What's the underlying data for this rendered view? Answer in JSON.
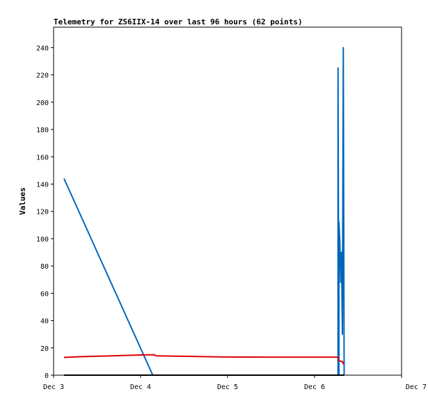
{
  "chart_data": {
    "type": "line",
    "title": "Telemetry for ZS6IIX-14 over last 96 hours (62 points)",
    "xlabel": "",
    "ylabel": "Values",
    "x_ticks": [
      "Dec 3",
      "Dec 4",
      "Dec 5",
      "Dec 6",
      "Dec 7"
    ],
    "xlim_days": [
      3,
      7
    ],
    "ylim": [
      0,
      255
    ],
    "y_ticks": [
      0,
      20,
      40,
      60,
      80,
      100,
      120,
      140,
      160,
      180,
      200,
      220,
      240
    ],
    "grid": false,
    "legend": "none",
    "series": [
      {
        "color": "#0066bb",
        "points": [
          [
            3.12,
            144
          ],
          [
            4.14,
            0
          ],
          [
            6.27,
            0
          ],
          [
            6.27,
            225
          ],
          [
            6.28,
            0
          ],
          [
            6.28,
            112
          ],
          [
            6.29,
            98
          ],
          [
            6.3,
            68
          ],
          [
            6.31,
            90
          ],
          [
            6.32,
            30
          ],
          [
            6.33,
            240
          ],
          [
            6.34,
            0
          ]
        ]
      },
      {
        "color": "#dd0000",
        "points": [
          [
            3.12,
            13
          ],
          [
            3.3,
            13.5
          ],
          [
            3.6,
            14
          ],
          [
            4.0,
            14.8
          ],
          [
            4.15,
            15
          ],
          [
            4.18,
            14.2
          ],
          [
            4.5,
            13.8
          ],
          [
            4.95,
            13.3
          ],
          [
            5.5,
            13.2
          ],
          [
            6.27,
            13.2
          ],
          [
            6.28,
            10.5
          ],
          [
            6.32,
            10
          ],
          [
            6.33,
            8
          ]
        ]
      },
      {
        "color": "#000000",
        "points": [
          [
            3.12,
            0
          ],
          [
            6.34,
            0
          ]
        ]
      }
    ]
  }
}
